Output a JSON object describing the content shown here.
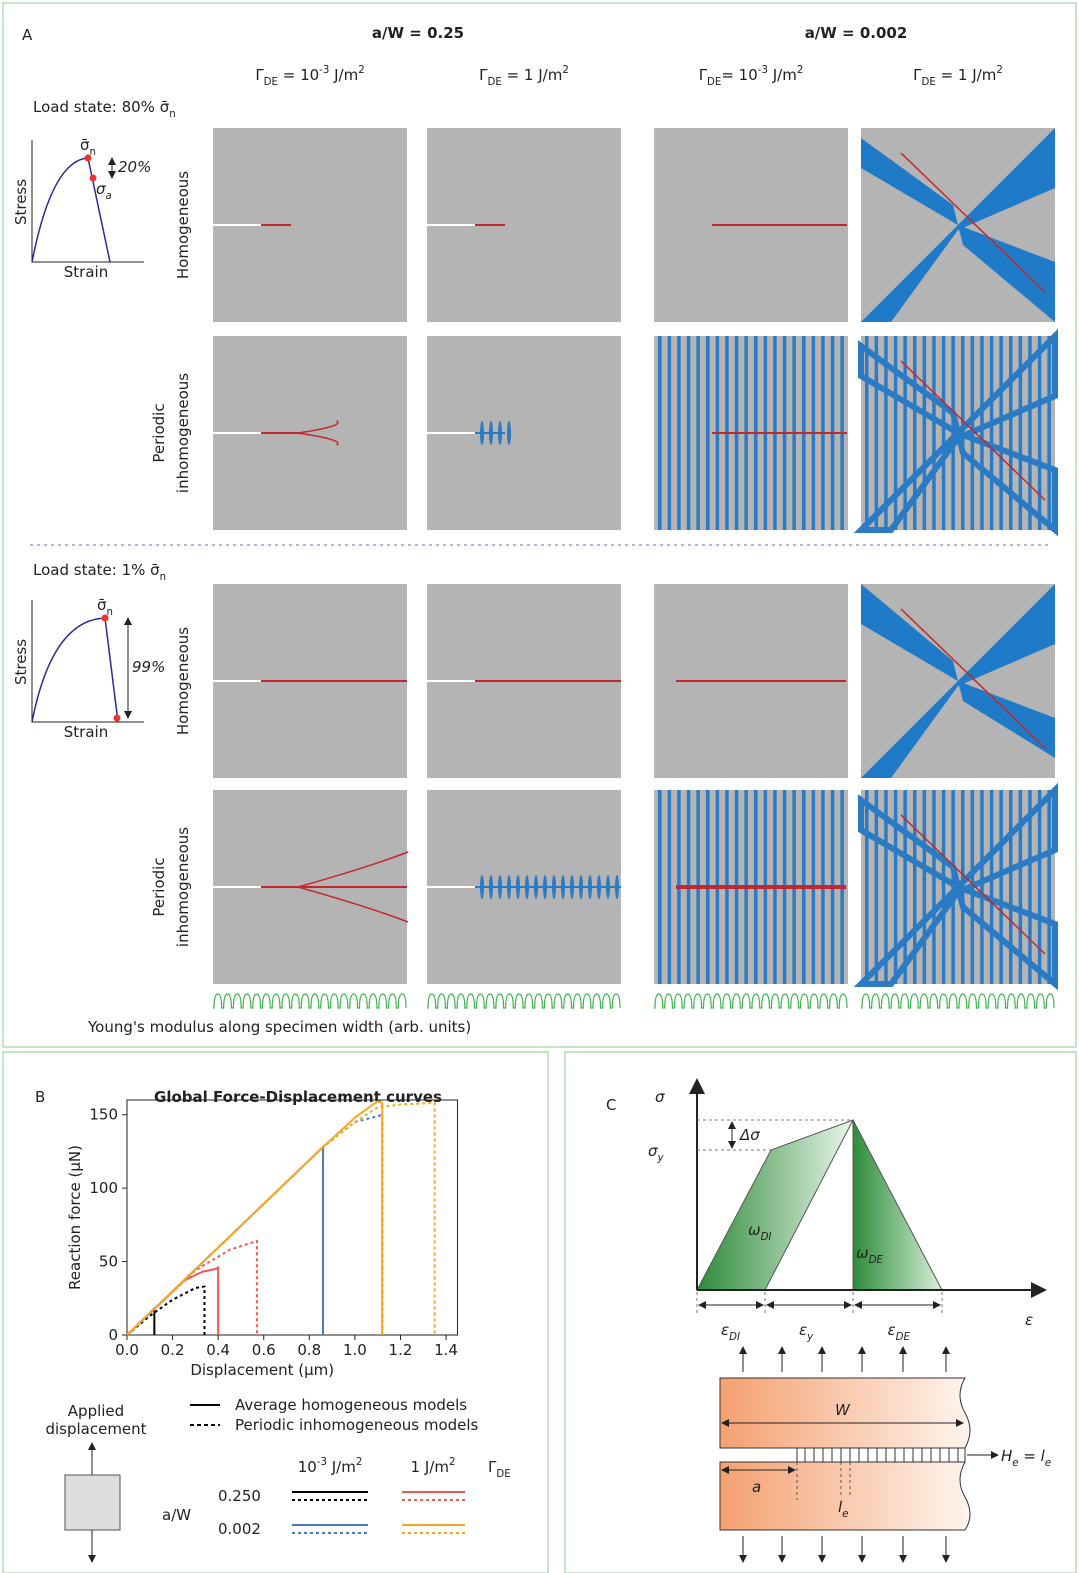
{
  "panel_a": {
    "label": "A",
    "groups": [
      "a/W = 0.25",
      "a/W = 0.002"
    ],
    "columns": [
      [
        "Γ",
        "DE",
        " = 10",
        "-3",
        " J/m",
        "2"
      ],
      [
        "Γ",
        "DE",
        " = 1 J/m",
        "2"
      ],
      [
        "Γ",
        "DE",
        "= 10",
        "-3",
        " J/m",
        "2"
      ],
      [
        "Γ",
        "DE",
        " = 1 J/m",
        "2"
      ]
    ],
    "load_states": [
      [
        "Load state: 80% ",
        "σ̄",
        "n"
      ],
      [
        "Load state: 1% ",
        "σ̄",
        "n"
      ]
    ],
    "insets": [
      {
        "y_label": "Stress",
        "x_label": "Strain",
        "peak": [
          "σ̄",
          "n"
        ],
        "drop": "20%",
        "point": [
          "σ",
          "a"
        ]
      },
      {
        "y_label": "Stress",
        "x_label": "Strain",
        "peak": [
          "σ̄",
          "n"
        ],
        "drop": "99%"
      }
    ],
    "rows": [
      [
        "Homogeneous"
      ],
      [
        "Periodic",
        "inhomogeneous"
      ]
    ],
    "footer": "Young's modulus along specimen width (arb. units)"
  },
  "chart_data": {
    "type": "line",
    "panel_label": "B",
    "title": "Global Force-Displacement curves",
    "x_label": "Displacement (μm)",
    "y_label": "Reaction force (μN)",
    "xlim": [
      0,
      1.45
    ],
    "ylim": [
      0,
      160
    ],
    "xticks": [
      {
        "value": 0,
        "label": "0.0"
      },
      0.2,
      0.4,
      0.6,
      0.8,
      {
        "value": 1,
        "label": "1.0"
      },
      1.2,
      1.4
    ],
    "yticks": [
      0,
      50,
      100,
      150
    ],
    "series": [
      {
        "color": "#000000",
        "dashed": false,
        "x": [
          0,
          0.12,
          0.12
        ],
        "values": [
          0,
          18,
          0
        ]
      },
      {
        "color": "#000000",
        "dashed": true,
        "x": [
          0,
          0.1,
          0.2,
          0.3,
          0.34,
          0.34
        ],
        "values": [
          0,
          13,
          24,
          32,
          33,
          0
        ]
      },
      {
        "color": "#f05a4a",
        "dashed": false,
        "x": [
          0,
          0.25,
          0.33,
          0.39,
          0.4,
          0.4
        ],
        "values": [
          0,
          37,
          43,
          45,
          46,
          0
        ]
      },
      {
        "color": "#f05a4a",
        "dashed": true,
        "x": [
          0,
          0.3,
          0.45,
          0.57,
          0.57
        ],
        "values": [
          0,
          44,
          58,
          64,
          0
        ]
      },
      {
        "color": "#4a78c8",
        "dashed": false,
        "x": [
          0,
          0.86,
          0.86
        ],
        "values": [
          0,
          128,
          0
        ]
      },
      {
        "color": "#4a78c8",
        "dashed": true,
        "x": [
          0,
          0.86,
          1.0,
          1.1,
          1.12,
          1.12
        ],
        "values": [
          0,
          128,
          145,
          149,
          150,
          0
        ]
      },
      {
        "color": "#f5a623",
        "dashed": false,
        "x": [
          0,
          0.86,
          1.0,
          1.08,
          1.1,
          1.12,
          1.12
        ],
        "values": [
          0,
          128,
          148,
          157,
          159,
          158,
          0
        ]
      },
      {
        "color": "#f5a623",
        "dashed": true,
        "x": [
          0,
          0.86,
          1.0,
          1.1,
          1.2,
          1.35,
          1.35
        ],
        "values": [
          0,
          128,
          145,
          155,
          157,
          158,
          0
        ]
      }
    ],
    "legend": {
      "applied": [
        "Applied",
        "displacement"
      ],
      "styles": [
        "Average homogeneous models",
        "Periodic inhomogeneous models"
      ],
      "gamma_headers": [
        [
          "10",
          "-3",
          " J/m",
          "2"
        ],
        [
          "1 J/m",
          "2"
        ]
      ],
      "gamma_symbol": [
        "Γ",
        "DE"
      ],
      "aw_label": "a/W",
      "aw_values": [
        "0.250",
        "0.002"
      ]
    }
  },
  "panel_c": {
    "label": "C",
    "sigma": "σ",
    "sigma_y": [
      "σ",
      "y"
    ],
    "delta": "Δσ",
    "omega_di": [
      "ω",
      "DI"
    ],
    "omega_de": [
      "ω",
      "DE"
    ],
    "eps_di": [
      "ε",
      "DI"
    ],
    "eps_y": [
      "ε",
      "y"
    ],
    "eps_de": [
      "ε",
      "DE"
    ],
    "eps": "ε",
    "W": "W",
    "a": "a",
    "le": [
      "l",
      "e"
    ],
    "he": [
      "H",
      "e",
      " = ",
      "l",
      "e"
    ]
  }
}
